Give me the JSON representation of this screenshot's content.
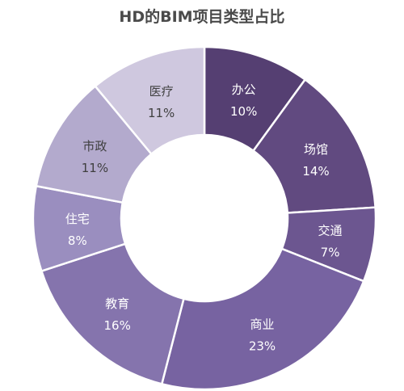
{
  "chart_data": {
    "type": "pie",
    "variant": "donut",
    "title": "HD的BIM项目类型占比",
    "legend": "none",
    "slices": [
      {
        "label": "办公",
        "percent_label": "10%",
        "value": 10,
        "color": "#553f72",
        "text_color": "#ffffff"
      },
      {
        "label": "场馆",
        "percent_label": "14%",
        "value": 14,
        "color": "#614a80",
        "text_color": "#ffffff"
      },
      {
        "label": "交通",
        "percent_label": "7%",
        "value": 7,
        "color": "#6c5690",
        "text_color": "#ffffff"
      },
      {
        "label": "商业",
        "percent_label": "23%",
        "value": 23,
        "color": "#7763a1",
        "text_color": "#ffffff"
      },
      {
        "label": "教育",
        "percent_label": "16%",
        "value": 16,
        "color": "#8574ad",
        "text_color": "#ffffff"
      },
      {
        "label": "住宅",
        "percent_label": "8%",
        "value": 8,
        "color": "#9a8ebf",
        "text_color": "#ffffff"
      },
      {
        "label": "市政",
        "percent_label": "11%",
        "value": 11,
        "color": "#b3aacd",
        "text_color": "#3f3f3f"
      },
      {
        "label": "医疗",
        "percent_label": "11%",
        "value": 11,
        "color": "#cfc8df",
        "text_color": "#3f3f3f"
      }
    ]
  }
}
